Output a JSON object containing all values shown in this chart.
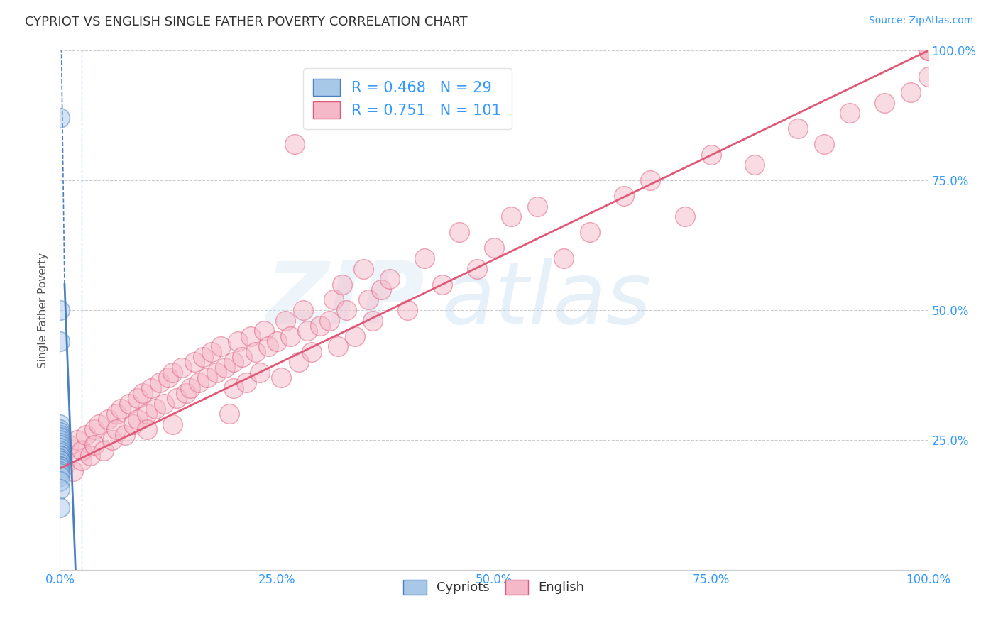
{
  "title": "CYPRIOT VS ENGLISH SINGLE FATHER POVERTY CORRELATION CHART",
  "source": "Source: ZipAtlas.com",
  "ylabel": "Single Father Poverty",
  "xlim": [
    0.0,
    1.0
  ],
  "ylim": [
    0.0,
    1.0
  ],
  "xticks": [
    0.0,
    0.25,
    0.5,
    0.75,
    1.0
  ],
  "xtick_labels": [
    "0.0%",
    "25.0%",
    "50.0%",
    "75.0%",
    "100.0%"
  ],
  "ytick_labels": [
    "25.0%",
    "50.0%",
    "75.0%",
    "100.0%"
  ],
  "ytick_positions": [
    0.25,
    0.5,
    0.75,
    1.0
  ],
  "cypriot_color": "#a8c8e8",
  "english_color": "#f4b8c8",
  "cypriot_edge_color": "#4a80c0",
  "english_edge_color": "#e05878",
  "cypriot_line_color": "#4a80c0",
  "english_line_color": "#e05878",
  "cypriot_R": 0.468,
  "cypriot_N": 29,
  "english_R": 0.751,
  "english_N": 101,
  "background_color": "#ffffff",
  "watermark_zip": "ZIP",
  "watermark_atlas": "atlas",
  "eng_line_x0": 0.0,
  "eng_line_y0": 0.195,
  "eng_line_x1": 1.0,
  "eng_line_y1": 1.0,
  "cyr_line_x": 0.018,
  "cypriot_points_x": [
    0.0,
    0.0,
    0.0,
    0.0,
    0.0,
    0.0,
    0.0,
    0.0,
    0.0,
    0.0,
    0.0,
    0.0,
    0.0,
    0.0,
    0.0,
    0.0,
    0.0,
    0.0,
    0.0,
    0.0,
    0.0,
    0.0,
    0.0,
    0.0,
    0.0,
    0.0,
    0.0,
    0.0,
    0.0
  ],
  "cypriot_points_y": [
    0.87,
    0.5,
    0.44,
    0.28,
    0.27,
    0.265,
    0.26,
    0.255,
    0.25,
    0.245,
    0.24,
    0.235,
    0.23,
    0.225,
    0.22,
    0.22,
    0.215,
    0.21,
    0.21,
    0.205,
    0.2,
    0.2,
    0.195,
    0.19,
    0.185,
    0.18,
    0.17,
    0.155,
    0.12
  ],
  "english_points_x": [
    0.0,
    0.005,
    0.01,
    0.015,
    0.02,
    0.025,
    0.025,
    0.03,
    0.035,
    0.04,
    0.04,
    0.045,
    0.05,
    0.055,
    0.06,
    0.065,
    0.065,
    0.07,
    0.075,
    0.08,
    0.085,
    0.09,
    0.09,
    0.095,
    0.1,
    0.1,
    0.105,
    0.11,
    0.115,
    0.12,
    0.125,
    0.13,
    0.13,
    0.135,
    0.14,
    0.145,
    0.15,
    0.155,
    0.16,
    0.165,
    0.17,
    0.175,
    0.18,
    0.185,
    0.19,
    0.195,
    0.2,
    0.2,
    0.205,
    0.21,
    0.215,
    0.22,
    0.225,
    0.23,
    0.235,
    0.24,
    0.25,
    0.255,
    0.26,
    0.265,
    0.27,
    0.275,
    0.28,
    0.285,
    0.29,
    0.3,
    0.31,
    0.315,
    0.32,
    0.325,
    0.33,
    0.34,
    0.35,
    0.355,
    0.36,
    0.37,
    0.38,
    0.4,
    0.42,
    0.44,
    0.46,
    0.48,
    0.5,
    0.52,
    0.55,
    0.58,
    0.61,
    0.65,
    0.68,
    0.72,
    0.75,
    0.8,
    0.85,
    0.88,
    0.91,
    0.95,
    0.98,
    1.0,
    1.0,
    1.0,
    1.0
  ],
  "english_points_y": [
    0.22,
    0.2,
    0.24,
    0.19,
    0.25,
    0.21,
    0.23,
    0.26,
    0.22,
    0.27,
    0.24,
    0.28,
    0.23,
    0.29,
    0.25,
    0.3,
    0.27,
    0.31,
    0.26,
    0.32,
    0.28,
    0.33,
    0.29,
    0.34,
    0.3,
    0.27,
    0.35,
    0.31,
    0.36,
    0.32,
    0.37,
    0.28,
    0.38,
    0.33,
    0.39,
    0.34,
    0.35,
    0.4,
    0.36,
    0.41,
    0.37,
    0.42,
    0.38,
    0.43,
    0.39,
    0.3,
    0.4,
    0.35,
    0.44,
    0.41,
    0.36,
    0.45,
    0.42,
    0.38,
    0.46,
    0.43,
    0.44,
    0.37,
    0.48,
    0.45,
    0.82,
    0.4,
    0.5,
    0.46,
    0.42,
    0.47,
    0.48,
    0.52,
    0.43,
    0.55,
    0.5,
    0.45,
    0.58,
    0.52,
    0.48,
    0.54,
    0.56,
    0.5,
    0.6,
    0.55,
    0.65,
    0.58,
    0.62,
    0.68,
    0.7,
    0.6,
    0.65,
    0.72,
    0.75,
    0.68,
    0.8,
    0.78,
    0.85,
    0.82,
    0.88,
    0.9,
    0.92,
    0.95,
    1.0,
    1.0,
    1.0
  ]
}
